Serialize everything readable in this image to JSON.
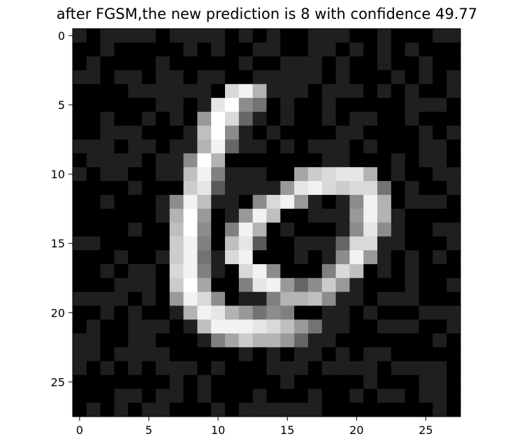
{
  "chart_data": {
    "type": "heatmap",
    "title": "after FGSM,the new prediction is 8 with confidence 49.77",
    "xlabel": "",
    "ylabel": "",
    "colormap": "gray",
    "value_range": [
      0,
      1
    ],
    "rows": 28,
    "cols": 28,
    "xlim": [
      -0.5,
      27.5
    ],
    "ylim": [
      27.5,
      -0.5
    ],
    "xticks": [
      0,
      5,
      10,
      15,
      20,
      25
    ],
    "yticks": [
      0,
      5,
      10,
      15,
      20,
      25
    ],
    "xtick_labels": [
      "0",
      "5",
      "10",
      "15",
      "20",
      "25"
    ],
    "ytick_labels": [
      "0",
      "5",
      "10",
      "15",
      "20",
      "25"
    ],
    "grid": false,
    "background_levels": [
      0.0,
      0.12
    ],
    "stroke_pixels": [
      [
        4,
        11,
        0.85
      ],
      [
        4,
        12,
        0.95
      ],
      [
        4,
        13,
        0.7
      ],
      [
        5,
        10,
        0.9
      ],
      [
        5,
        11,
        1.0
      ],
      [
        5,
        12,
        0.55
      ],
      [
        5,
        13,
        0.45
      ],
      [
        6,
        9,
        0.6
      ],
      [
        6,
        10,
        1.0
      ],
      [
        6,
        11,
        0.85
      ],
      [
        6,
        12,
        0.4
      ],
      [
        7,
        9,
        0.75
      ],
      [
        7,
        10,
        1.0
      ],
      [
        7,
        11,
        0.55
      ],
      [
        8,
        9,
        0.7
      ],
      [
        8,
        10,
        0.95
      ],
      [
        8,
        11,
        0.4
      ],
      [
        9,
        8,
        0.55
      ],
      [
        9,
        9,
        1.0
      ],
      [
        9,
        10,
        0.7
      ],
      [
        10,
        8,
        0.75
      ],
      [
        10,
        9,
        0.95
      ],
      [
        10,
        10,
        0.5
      ],
      [
        11,
        8,
        0.8
      ],
      [
        11,
        9,
        0.9
      ],
      [
        11,
        10,
        0.35
      ],
      [
        12,
        7,
        0.55
      ],
      [
        12,
        8,
        0.95
      ],
      [
        12,
        9,
        0.75
      ],
      [
        13,
        7,
        0.7
      ],
      [
        13,
        8,
        1.0
      ],
      [
        13,
        9,
        0.6
      ],
      [
        14,
        7,
        0.75
      ],
      [
        14,
        8,
        1.0
      ],
      [
        14,
        9,
        0.55
      ],
      [
        15,
        7,
        0.8
      ],
      [
        15,
        8,
        0.95
      ],
      [
        15,
        9,
        0.5
      ],
      [
        16,
        7,
        0.8
      ],
      [
        16,
        8,
        0.95
      ],
      [
        16,
        9,
        0.45
      ],
      [
        17,
        7,
        0.85
      ],
      [
        17,
        8,
        0.95
      ],
      [
        17,
        9,
        0.5
      ],
      [
        18,
        7,
        0.8
      ],
      [
        18,
        8,
        1.0
      ],
      [
        18,
        9,
        0.65
      ],
      [
        19,
        7,
        0.6
      ],
      [
        19,
        8,
        0.95
      ],
      [
        19,
        9,
        0.85
      ],
      [
        19,
        10,
        0.55
      ],
      [
        20,
        8,
        0.7
      ],
      [
        20,
        9,
        0.95
      ],
      [
        20,
        10,
        0.9
      ],
      [
        20,
        11,
        0.7
      ],
      [
        20,
        12,
        0.6
      ],
      [
        21,
        9,
        0.75
      ],
      [
        21,
        10,
        0.95
      ],
      [
        21,
        11,
        0.95
      ],
      [
        21,
        12,
        0.95
      ],
      [
        21,
        13,
        0.9
      ],
      [
        21,
        14,
        0.85
      ],
      [
        21,
        15,
        0.75
      ],
      [
        21,
        16,
        0.6
      ],
      [
        21,
        17,
        0.45
      ],
      [
        22,
        10,
        0.5
      ],
      [
        22,
        11,
        0.65
      ],
      [
        22,
        12,
        0.8
      ],
      [
        22,
        13,
        0.7
      ],
      [
        22,
        14,
        0.7
      ],
      [
        22,
        15,
        0.6
      ],
      [
        22,
        16,
        0.4
      ],
      [
        10,
        16,
        0.65
      ],
      [
        10,
        17,
        0.8
      ],
      [
        10,
        18,
        0.85
      ],
      [
        10,
        19,
        0.9
      ],
      [
        10,
        20,
        0.9
      ],
      [
        10,
        21,
        0.7
      ],
      [
        11,
        15,
        0.6
      ],
      [
        11,
        16,
        0.9
      ],
      [
        11,
        17,
        0.95
      ],
      [
        11,
        18,
        0.85
      ],
      [
        11,
        19,
        0.8
      ],
      [
        11,
        20,
        0.85
      ],
      [
        11,
        21,
        0.85
      ],
      [
        11,
        22,
        0.45
      ],
      [
        12,
        13,
        0.55
      ],
      [
        12,
        14,
        0.85
      ],
      [
        12,
        15,
        0.95
      ],
      [
        12,
        16,
        0.6
      ],
      [
        12,
        20,
        0.55
      ],
      [
        12,
        21,
        0.95
      ],
      [
        12,
        22,
        0.7
      ],
      [
        13,
        12,
        0.6
      ],
      [
        13,
        13,
        0.95
      ],
      [
        13,
        14,
        0.75
      ],
      [
        13,
        20,
        0.6
      ],
      [
        13,
        21,
        0.95
      ],
      [
        13,
        22,
        0.7
      ],
      [
        14,
        11,
        0.5
      ],
      [
        14,
        12,
        0.95
      ],
      [
        14,
        13,
        0.7
      ],
      [
        14,
        20,
        0.55
      ],
      [
        14,
        21,
        0.9
      ],
      [
        14,
        22,
        0.55
      ],
      [
        15,
        11,
        0.75
      ],
      [
        15,
        12,
        0.9
      ],
      [
        15,
        13,
        0.35
      ],
      [
        15,
        19,
        0.4
      ],
      [
        15,
        20,
        0.85
      ],
      [
        15,
        21,
        0.85
      ],
      [
        16,
        11,
        0.85
      ],
      [
        16,
        12,
        0.95
      ],
      [
        16,
        19,
        0.55
      ],
      [
        16,
        20,
        0.95
      ],
      [
        16,
        21,
        0.6
      ],
      [
        17,
        12,
        0.85
      ],
      [
        17,
        13,
        0.95
      ],
      [
        17,
        14,
        0.55
      ],
      [
        17,
        18,
        0.5
      ],
      [
        17,
        19,
        0.85
      ],
      [
        17,
        20,
        0.75
      ],
      [
        18,
        12,
        0.5
      ],
      [
        18,
        13,
        0.9
      ],
      [
        18,
        14,
        0.95
      ],
      [
        18,
        15,
        0.6
      ],
      [
        18,
        16,
        0.4
      ],
      [
        18,
        17,
        0.55
      ],
      [
        18,
        18,
        0.8
      ],
      [
        18,
        19,
        0.6
      ],
      [
        19,
        14,
        0.5
      ],
      [
        19,
        15,
        0.7
      ],
      [
        19,
        16,
        0.7
      ],
      [
        19,
        17,
        0.75
      ],
      [
        19,
        18,
        0.55
      ],
      [
        20,
        13,
        0.45
      ],
      [
        20,
        14,
        0.55
      ],
      [
        20,
        15,
        0.5
      ]
    ]
  }
}
